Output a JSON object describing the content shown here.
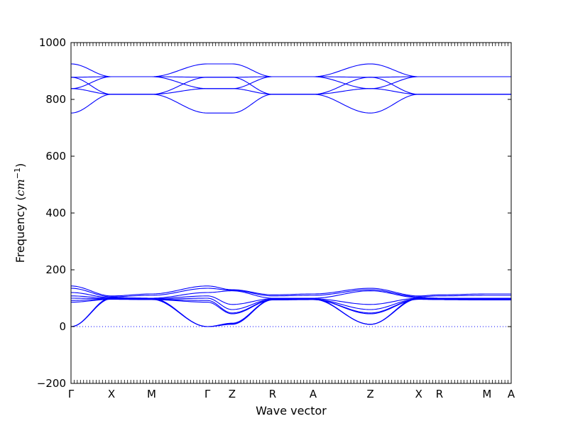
{
  "chart_data": {
    "type": "line",
    "title": "",
    "xlabel": "Wave vector",
    "ylabel": "Frequency",
    "ylabel_unit_base": "cm",
    "ylabel_unit_exp": "−1",
    "ylim": [
      -200,
      1000
    ],
    "yticks": [
      -200,
      0,
      200,
      400,
      600,
      800,
      1000
    ],
    "path_labels": [
      "Γ",
      "X",
      "M",
      "Γ",
      "Z",
      "R",
      "A",
      "Z",
      "X",
      "R",
      "M",
      "A"
    ],
    "path_positions": [
      0.0,
      0.092,
      0.183,
      0.31,
      0.366,
      0.458,
      0.55,
      0.68,
      0.79,
      0.837,
      0.945,
      1.0
    ],
    "zero_line": 0,
    "line_color": "#0000ff",
    "series": [
      {
        "values": [
          925,
          880,
          880,
          925,
          925,
          880,
          880,
          925,
          880,
          880,
          880,
          880
        ]
      },
      {
        "values": [
          878,
          880,
          880,
          878,
          878,
          880,
          880,
          878,
          880,
          880,
          880,
          880
        ]
      },
      {
        "values": [
          878,
          818,
          818,
          878,
          878,
          818,
          818,
          878,
          818,
          818,
          818,
          818
        ]
      },
      {
        "values": [
          838,
          880,
          880,
          838,
          838,
          880,
          880,
          838,
          880,
          880,
          880,
          880
        ]
      },
      {
        "values": [
          838,
          818,
          818,
          838,
          838,
          818,
          818,
          838,
          818,
          818,
          818,
          818
        ]
      },
      {
        "values": [
          752,
          818,
          818,
          752,
          752,
          818,
          818,
          752,
          818,
          818,
          818,
          818
        ]
      },
      {
        "values": [
          143,
          108,
          115,
          143,
          130,
          112,
          115,
          135,
          108,
          112,
          115,
          115
        ]
      },
      {
        "values": [
          135,
          105,
          110,
          135,
          128,
          108,
          110,
          130,
          105,
          108,
          110,
          110
        ]
      },
      {
        "values": [
          120,
          102,
          100,
          120,
          126,
          100,
          100,
          126,
          102,
          100,
          100,
          100
        ]
      },
      {
        "values": [
          108,
          100,
          98,
          108,
          78,
          98,
          98,
          78,
          100,
          98,
          97,
          97
        ]
      },
      {
        "values": [
          100,
          98,
          96,
          100,
          60,
          96,
          96,
          60,
          98,
          96,
          95,
          95
        ]
      },
      {
        "values": [
          92,
          97,
          95,
          92,
          48,
          95,
          95,
          48,
          97,
          95,
          94,
          94
        ]
      },
      {
        "values": [
          86,
          96,
          95,
          86,
          45,
          94,
          95,
          45,
          96,
          95,
          94,
          94
        ]
      },
      {
        "values": [
          0,
          102,
          100,
          0,
          12,
          96,
          98,
          8,
          102,
          100,
          99,
          99
        ]
      },
      {
        "values": [
          0,
          100,
          98,
          0,
          10,
          95,
          97,
          8,
          100,
          98,
          97,
          97
        ]
      },
      {
        "values": [
          0,
          98,
          96,
          0,
          8,
          94,
          96,
          8,
          98,
          96,
          95,
          95
        ]
      }
    ]
  }
}
